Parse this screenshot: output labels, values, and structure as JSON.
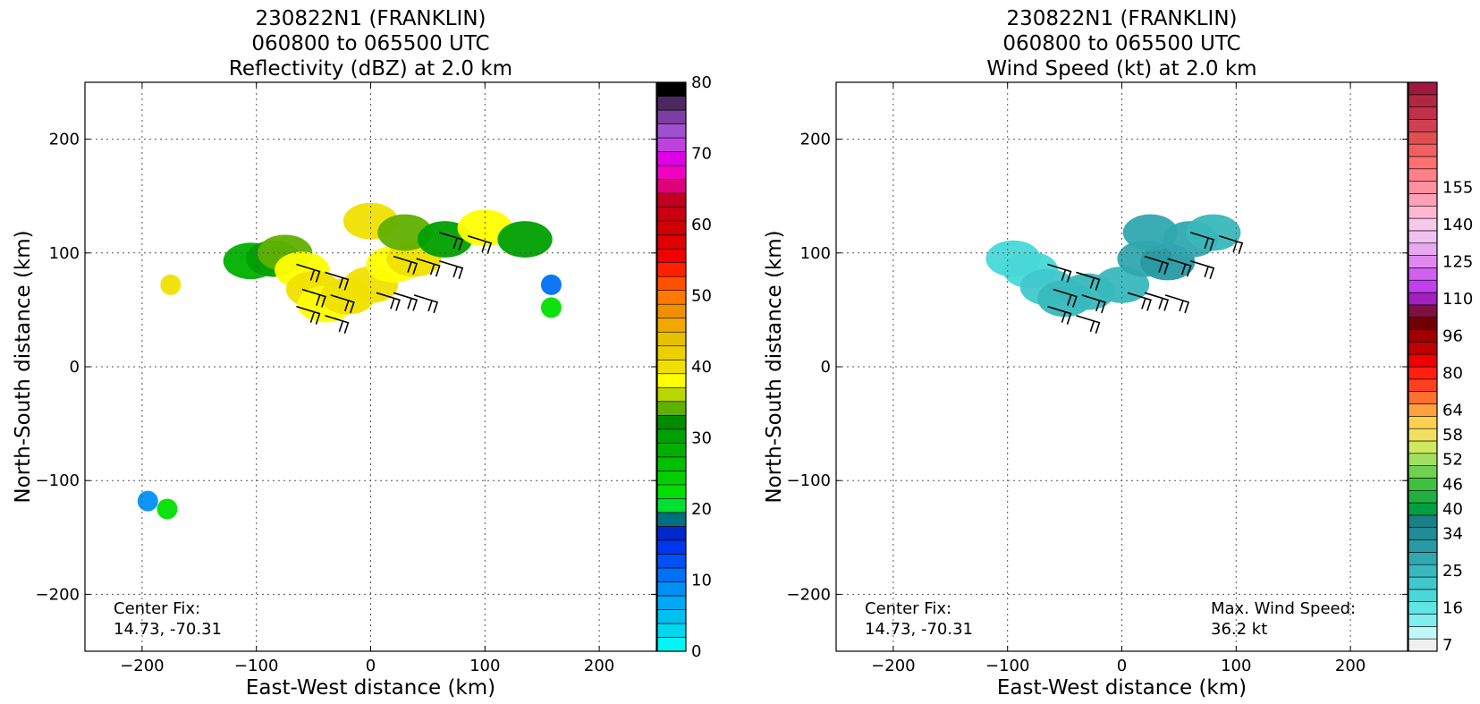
{
  "chart_data": [
    {
      "type": "heatmap",
      "title": [
        "230822N1 (FRANKLIN)",
        "060800 to 065500 UTC",
        "Reflectivity (dBZ) at 2.0 km"
      ],
      "xlabel": "East-West distance (km)",
      "ylabel": "North-South distance (km)",
      "xlim": [
        -250,
        250
      ],
      "ylim": [
        -250,
        250
      ],
      "xticks": [
        -200,
        -100,
        0,
        100,
        200
      ],
      "yticks": [
        -200,
        -100,
        0,
        100,
        200
      ],
      "xtick_labels": [
        "−200",
        "−100",
        "0",
        "100",
        "200"
      ],
      "ytick_labels": [
        "−200",
        "−100",
        "0",
        "100",
        "200"
      ],
      "grid": true,
      "annotations": [
        {
          "lines": [
            "Center Fix:",
            "14.73, -70.31"
          ],
          "placement": "bottom-left"
        }
      ],
      "colorbar": {
        "min": 0,
        "max": 80,
        "tick_values": [
          0,
          10,
          20,
          30,
          40,
          50,
          60,
          70,
          80
        ],
        "tick_labels": [
          "0",
          "10",
          "20",
          "30",
          "40",
          "50",
          "60",
          "70",
          "80"
        ],
        "colors": [
          "#00f5f5",
          "#00d8ee",
          "#00c0f0",
          "#00a8f5",
          "#0090f5",
          "#0070f5",
          "#0050f5",
          "#0035f0",
          "#0028c8",
          "#007080",
          "#00e030",
          "#00e000",
          "#00d000",
          "#00c000",
          "#00b000",
          "#00a000",
          "#008c00",
          "#60b000",
          "#b8d800",
          "#ffff00",
          "#f0e000",
          "#ecd000",
          "#e8c000",
          "#f0a800",
          "#f09000",
          "#ff7800",
          "#ff5000",
          "#ff2000",
          "#f00000",
          "#e00000",
          "#d00000",
          "#c80010",
          "#c00020",
          "#e0007a",
          "#f000c0",
          "#e000e8",
          "#c040e0",
          "#a050d0",
          "#7a3fa0",
          "#4a2a60",
          "#000000"
        ]
      },
      "cells": [
        {
          "x": -105,
          "y": 93,
          "dbz": 28
        },
        {
          "x": -85,
          "y": 95,
          "dbz": 30
        },
        {
          "x": -75,
          "y": 100,
          "dbz": 35
        },
        {
          "x": -60,
          "y": 85,
          "dbz": 38
        },
        {
          "x": -50,
          "y": 68,
          "dbz": 40
        },
        {
          "x": -40,
          "y": 55,
          "dbz": 38
        },
        {
          "x": -20,
          "y": 62,
          "dbz": 40
        },
        {
          "x": 0,
          "y": 72,
          "dbz": 40
        },
        {
          "x": 20,
          "y": 90,
          "dbz": 38
        },
        {
          "x": 38,
          "y": 95,
          "dbz": 40
        },
        {
          "x": 0,
          "y": 128,
          "dbz": 40
        },
        {
          "x": 30,
          "y": 118,
          "dbz": 35
        },
        {
          "x": 65,
          "y": 112,
          "dbz": 30
        },
        {
          "x": 100,
          "y": 122,
          "dbz": 38
        },
        {
          "x": 135,
          "y": 112,
          "dbz": 30
        },
        {
          "x": -175,
          "y": 72,
          "dbz": 40
        },
        {
          "x": 158,
          "y": 72,
          "dbz": 10
        },
        {
          "x": 158,
          "y": 52,
          "dbz": 22
        },
        {
          "x": -195,
          "y": -118,
          "dbz": 8
        },
        {
          "x": -178,
          "y": -125,
          "dbz": 22
        }
      ],
      "barbs": [
        {
          "x": -65,
          "y": 90
        },
        {
          "x": -40,
          "y": 83
        },
        {
          "x": -60,
          "y": 68
        },
        {
          "x": -35,
          "y": 63
        },
        {
          "x": -65,
          "y": 53
        },
        {
          "x": -40,
          "y": 45
        },
        {
          "x": 5,
          "y": 65
        },
        {
          "x": 20,
          "y": 65
        },
        {
          "x": 38,
          "y": 63
        },
        {
          "x": 20,
          "y": 97
        },
        {
          "x": 40,
          "y": 95
        },
        {
          "x": 60,
          "y": 93
        },
        {
          "x": 60,
          "y": 118
        },
        {
          "x": 85,
          "y": 115
        }
      ]
    },
    {
      "type": "heatmap",
      "title": [
        "230822N1 (FRANKLIN)",
        "060800 to 065500 UTC",
        "Wind Speed (kt) at 2.0 km"
      ],
      "xlabel": "East-West distance (km)",
      "ylabel": "North-South distance (km)",
      "xlim": [
        -250,
        250
      ],
      "ylim": [
        -250,
        250
      ],
      "xticks": [
        -200,
        -100,
        0,
        100,
        200
      ],
      "yticks": [
        -200,
        -100,
        0,
        100,
        200
      ],
      "xtick_labels": [
        "−200",
        "−100",
        "0",
        "100",
        "200"
      ],
      "ytick_labels": [
        "−200",
        "−100",
        "0",
        "100",
        "200"
      ],
      "grid": true,
      "annotations": [
        {
          "lines": [
            "Center Fix:",
            "14.73, -70.31"
          ],
          "placement": "bottom-left"
        },
        {
          "lines": [
            "Max. Wind Speed:",
            "36.2 kt"
          ],
          "placement": "bottom-right"
        }
      ],
      "colorbar": {
        "tick_labels": [
          "7",
          "16",
          "25",
          "34",
          "40",
          "46",
          "52",
          "58",
          "64",
          "80",
          "96",
          "110",
          "125",
          "140",
          "155"
        ],
        "tick_bins": [
          0,
          3,
          6,
          9,
          11,
          13,
          15,
          17,
          19,
          22,
          25,
          28,
          31,
          34,
          37
        ],
        "colors": [
          "#f0f0f0",
          "#c0f8f8",
          "#80eeee",
          "#60e4e4",
          "#48d8d8",
          "#40c8cc",
          "#38b8bc",
          "#30a8b0",
          "#289aa4",
          "#208c98",
          "#1a8088",
          "#00a040",
          "#20b040",
          "#40c040",
          "#70d050",
          "#a0e060",
          "#d0e860",
          "#f0e060",
          "#ffd050",
          "#ffa040",
          "#ff7030",
          "#ff4020",
          "#ff2010",
          "#f00000",
          "#c00000",
          "#a00000",
          "#700000",
          "#801040",
          "#a020c0",
          "#c040f0",
          "#d060f0",
          "#e088f0",
          "#e8a8f0",
          "#f0c0f0",
          "#f8c8e8",
          "#ffb8d0",
          "#ffa0b8",
          "#ff90a0",
          "#ff8088",
          "#ff7070",
          "#f06060",
          "#e05050",
          "#d04050",
          "#c03048",
          "#b02840",
          "#a01840"
        ]
      },
      "cells": [
        {
          "x": -95,
          "y": 95,
          "kt": 18
        },
        {
          "x": -80,
          "y": 85,
          "kt": 20
        },
        {
          "x": -65,
          "y": 70,
          "kt": 22
        },
        {
          "x": -50,
          "y": 60,
          "kt": 24
        },
        {
          "x": -30,
          "y": 66,
          "kt": 24
        },
        {
          "x": 0,
          "y": 72,
          "kt": 26
        },
        {
          "x": 20,
          "y": 95,
          "kt": 28
        },
        {
          "x": 40,
          "y": 92,
          "kt": 30
        },
        {
          "x": 25,
          "y": 118,
          "kt": 28
        },
        {
          "x": 60,
          "y": 112,
          "kt": 28
        },
        {
          "x": 80,
          "y": 118,
          "kt": 26
        }
      ],
      "barbs": [
        {
          "x": -65,
          "y": 90
        },
        {
          "x": -40,
          "y": 83
        },
        {
          "x": -60,
          "y": 68
        },
        {
          "x": -35,
          "y": 63
        },
        {
          "x": -65,
          "y": 53
        },
        {
          "x": -40,
          "y": 45
        },
        {
          "x": 5,
          "y": 65
        },
        {
          "x": 20,
          "y": 65
        },
        {
          "x": 38,
          "y": 63
        },
        {
          "x": 20,
          "y": 97
        },
        {
          "x": 40,
          "y": 95
        },
        {
          "x": 60,
          "y": 93
        },
        {
          "x": 60,
          "y": 118
        },
        {
          "x": 85,
          "y": 115
        }
      ]
    }
  ]
}
